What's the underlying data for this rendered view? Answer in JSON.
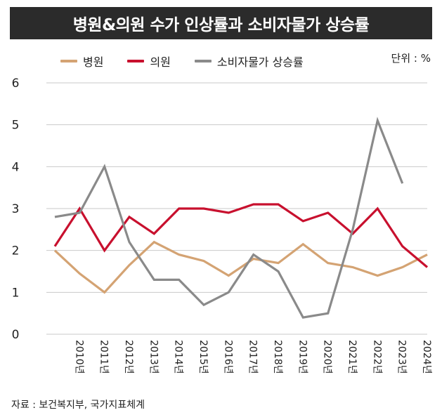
{
  "chart_data": {
    "type": "line",
    "title": "병원&의원 수가 인상률과 소비자물가 상승률",
    "unit_label": "단위 : %",
    "categories": [
      "2010년",
      "2011년",
      "2012년",
      "2013년",
      "2014년",
      "2015년",
      "2016년",
      "2017년",
      "2018년",
      "2019년",
      "2020년",
      "2021년",
      "2022년",
      "2023년",
      "2024년"
    ],
    "x_start": 2009,
    "x_end": 2024,
    "yticks": [
      0,
      1,
      2,
      3,
      4,
      5,
      6
    ],
    "ylim": [
      0,
      6
    ],
    "grid": true,
    "series": [
      {
        "name": "병원",
        "color": "#d4a373",
        "x": [
          2009,
          2010,
          2011,
          2012,
          2013,
          2014,
          2015,
          2016,
          2017,
          2018,
          2019,
          2020,
          2021,
          2022,
          2023,
          2024
        ],
        "values": [
          2.0,
          1.45,
          1.0,
          1.65,
          2.2,
          1.9,
          1.75,
          1.4,
          1.8,
          1.7,
          2.15,
          1.7,
          1.6,
          1.4,
          1.6,
          1.9
        ]
      },
      {
        "name": "의원",
        "color": "#c8102e",
        "x": [
          2009,
          2010,
          2011,
          2012,
          2013,
          2014,
          2015,
          2016,
          2017,
          2018,
          2019,
          2020,
          2021,
          2022,
          2023,
          2024
        ],
        "values": [
          2.1,
          3.0,
          2.0,
          2.8,
          2.4,
          3.0,
          3.0,
          2.9,
          3.1,
          3.1,
          2.7,
          2.9,
          2.4,
          3.0,
          2.1,
          1.6
        ]
      },
      {
        "name": "소비자물가 상승률",
        "color": "#8a8a8a",
        "x": [
          2009,
          2010,
          2011,
          2012,
          2013,
          2014,
          2015,
          2016,
          2017,
          2018,
          2019,
          2020,
          2021,
          2022,
          2023
        ],
        "values": [
          2.8,
          2.9,
          4.0,
          2.2,
          1.3,
          1.3,
          0.7,
          1.0,
          1.9,
          1.5,
          0.4,
          0.5,
          2.5,
          5.1,
          3.6
        ]
      }
    ],
    "source": "자료 : 보건복지부, 국가지표체계"
  }
}
